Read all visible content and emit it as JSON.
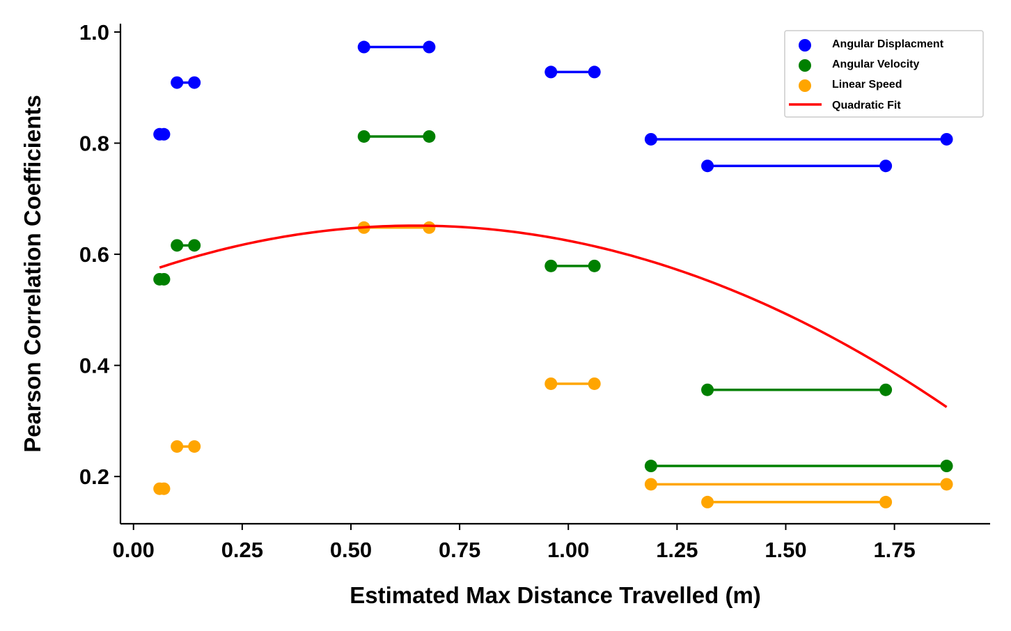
{
  "chart_data": {
    "type": "scatter",
    "xlabel": "Estimated Max Distance Travelled (m)",
    "ylabel": "Pearson Correlation Coefficients",
    "xlim": [
      -0.03,
      1.97
    ],
    "ylim": [
      0.115,
      1.015
    ],
    "xticks": [
      0.0,
      0.25,
      0.5,
      0.75,
      1.0,
      1.25,
      1.5,
      1.75
    ],
    "xtick_labels": [
      "0.00",
      "0.25",
      "0.50",
      "0.75",
      "1.00",
      "1.25",
      "1.50",
      "1.75"
    ],
    "yticks": [
      0.2,
      0.4,
      0.6,
      0.8,
      1.0
    ],
    "ytick_labels": [
      "0.2",
      "0.4",
      "0.6",
      "0.8",
      "1.0"
    ],
    "legend_position": "top-right",
    "series": [
      {
        "name": "Angular Displacment",
        "color": "#0000ff",
        "segments": [
          {
            "x": [
              0.06,
              0.07
            ],
            "y": 0.816
          },
          {
            "x": [
              0.1,
              0.14
            ],
            "y": 0.909
          },
          {
            "x": [
              0.53,
              0.68
            ],
            "y": 0.973
          },
          {
            "x": [
              0.96,
              1.06
            ],
            "y": 0.928
          },
          {
            "x": [
              1.19,
              1.87
            ],
            "y": 0.807
          },
          {
            "x": [
              1.32,
              1.73
            ],
            "y": 0.759
          }
        ]
      },
      {
        "name": "Angular Velocity",
        "color": "#008000",
        "segments": [
          {
            "x": [
              0.06,
              0.07
            ],
            "y": 0.555
          },
          {
            "x": [
              0.1,
              0.14
            ],
            "y": 0.616
          },
          {
            "x": [
              0.53,
              0.68
            ],
            "y": 0.812
          },
          {
            "x": [
              0.96,
              1.06
            ],
            "y": 0.579
          },
          {
            "x": [
              1.19,
              1.87
            ],
            "y": 0.219
          },
          {
            "x": [
              1.32,
              1.73
            ],
            "y": 0.356
          }
        ]
      },
      {
        "name": "Linear Speed",
        "color": "#ffa500",
        "segments": [
          {
            "x": [
              0.06,
              0.07
            ],
            "y": 0.178
          },
          {
            "x": [
              0.1,
              0.14
            ],
            "y": 0.254
          },
          {
            "x": [
              0.53,
              0.68
            ],
            "y": 0.648
          },
          {
            "x": [
              0.96,
              1.06
            ],
            "y": 0.367
          },
          {
            "x": [
              1.19,
              1.87
            ],
            "y": 0.186
          },
          {
            "x": [
              1.32,
              1.73
            ],
            "y": 0.154
          }
        ]
      }
    ],
    "fit": {
      "name": "Quadratic Fit",
      "color": "#ff0000",
      "type": "quadratic",
      "xrange": [
        0.06,
        1.87
      ],
      "points": [
        {
          "x": 0.06,
          "y": 0.576
        },
        {
          "x": 0.6327,
          "y": 0.6515
        },
        {
          "x": 1.87,
          "y": 0.325
        }
      ]
    }
  }
}
